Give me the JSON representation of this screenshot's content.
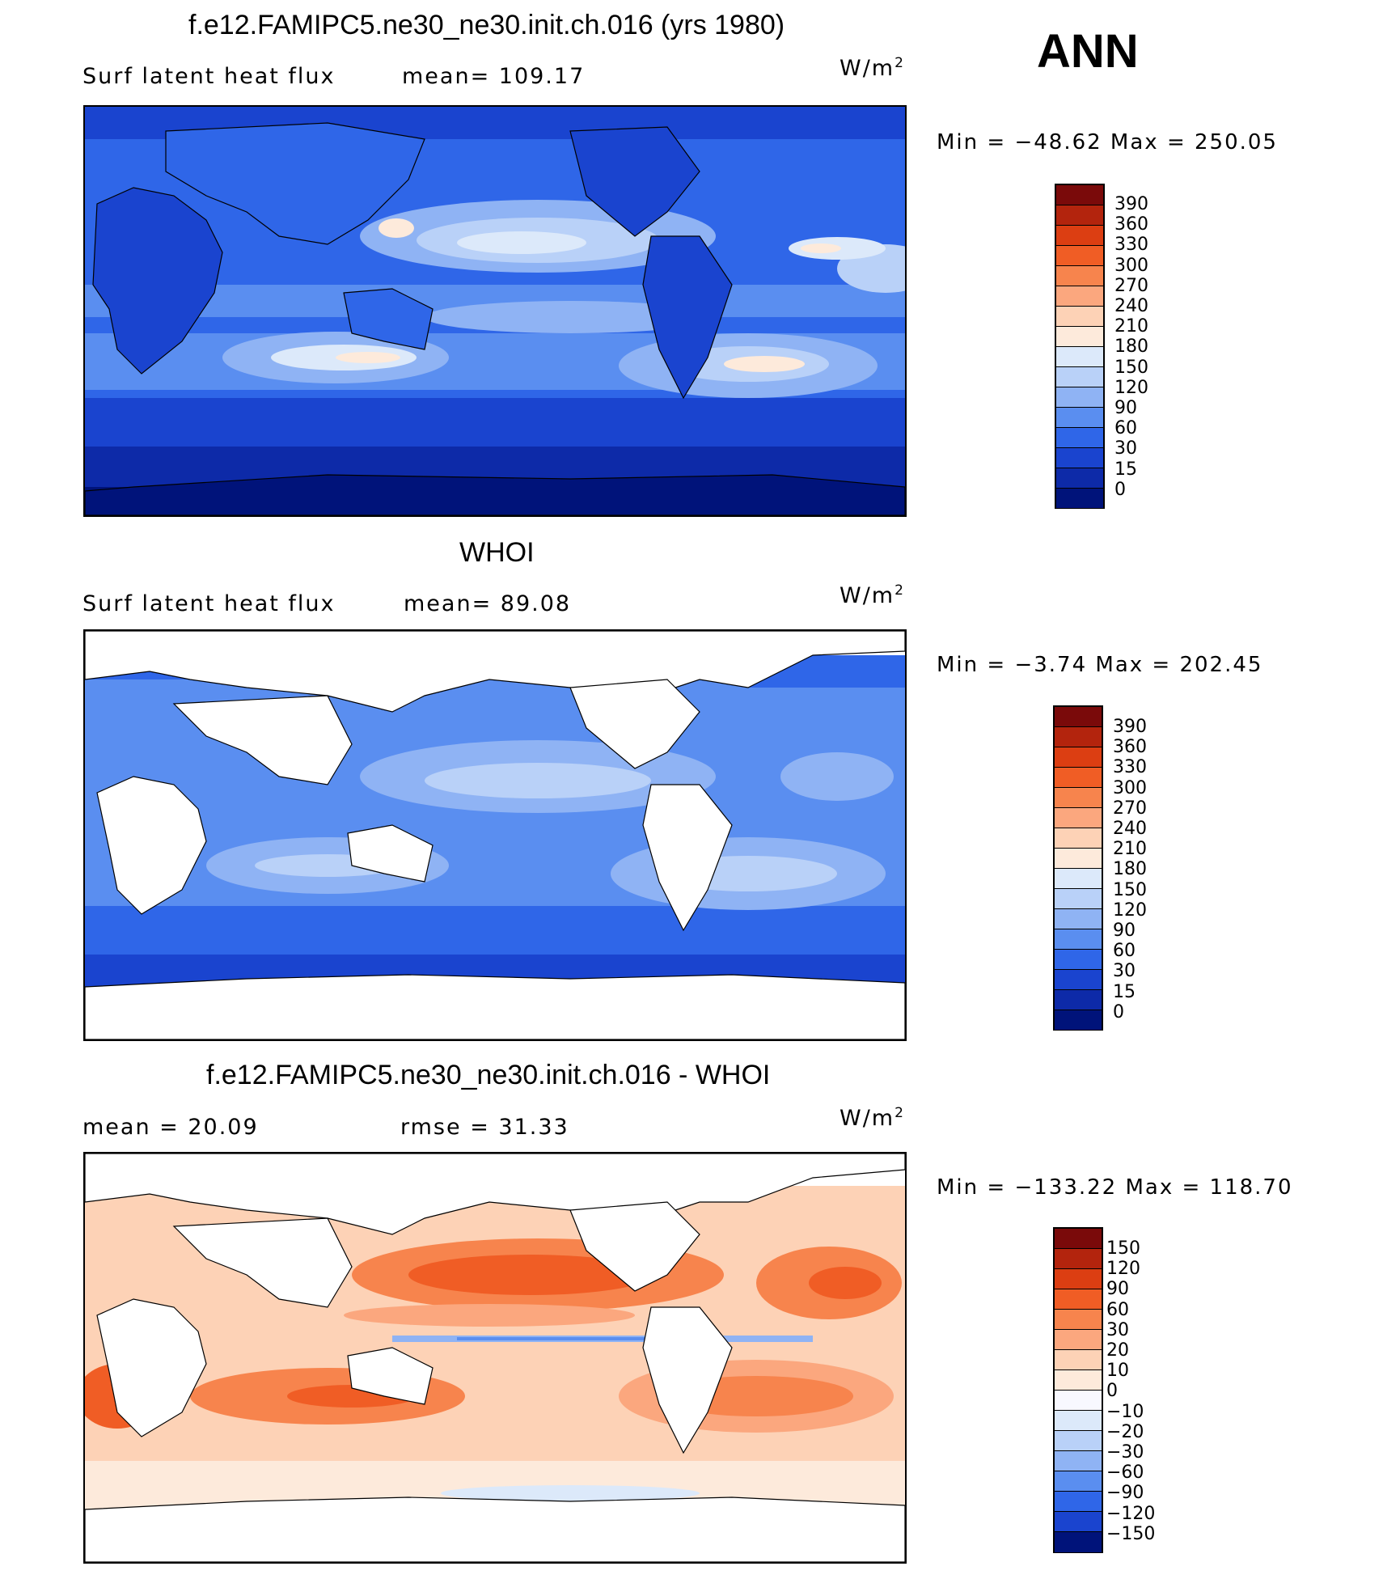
{
  "header": {
    "corner_label": "ANN"
  },
  "panels": [
    {
      "title": "f.e12.FAMIPC5.ne30_ne30.init.ch.016 (yrs 1980)",
      "subtitle_left": "Surf latent heat flux",
      "subtitle_mid": "mean= 109.17",
      "units_base": "W/m",
      "units_exp": "2",
      "min_max": "Min = −48.62 Max = 250.05",
      "colorbar_labels": [
        "390",
        "360",
        "330",
        "300",
        "270",
        "240",
        "210",
        "180",
        "150",
        "120",
        "90",
        "60",
        "30",
        "15",
        "0"
      ]
    },
    {
      "title": "WHOI",
      "subtitle_left": "Surf latent heat flux",
      "subtitle_mid": "mean= 89.08",
      "units_base": "W/m",
      "units_exp": "2",
      "min_max": "Min = −3.74 Max = 202.45",
      "colorbar_labels": [
        "390",
        "360",
        "330",
        "300",
        "270",
        "240",
        "210",
        "180",
        "150",
        "120",
        "90",
        "60",
        "30",
        "15",
        "0"
      ]
    },
    {
      "title": "f.e12.FAMIPC5.ne30_ne30.init.ch.016 - WHOI",
      "subtitle_left": "mean = 20.09",
      "subtitle_mid": "rmse = 31.33",
      "units_base": "W/m",
      "units_exp": "2",
      "min_max": "Min = −133.22 Max = 118.70",
      "colorbar_labels": [
        "150",
        "120",
        "90",
        "60",
        "30",
        "20",
        "10",
        "0",
        "−10",
        "−20",
        "−30",
        "−60",
        "−90",
        "−120",
        "−150"
      ]
    }
  ],
  "colors": {
    "abs_scale": [
      "#7a0a0a",
      "#b3240d",
      "#dc3e12",
      "#f05d25",
      "#f7844d",
      "#fba77e",
      "#fdd2b6",
      "#fdeadb",
      "#dce9fa",
      "#b9d1f8",
      "#8fb3f4",
      "#5a8ef0",
      "#2f66e8",
      "#1a44cf",
      "#0d2aa8",
      "#00137a"
    ],
    "diff_scale": [
      "#7a0a0a",
      "#b3240d",
      "#dc3e12",
      "#f05d25",
      "#f7844d",
      "#fba77e",
      "#fdd2b6",
      "#fdeadb",
      "#f8f8ff",
      "#dce9fa",
      "#b9d1f8",
      "#8fb3f4",
      "#5a8ef0",
      "#2f66e8",
      "#1a44cf",
      "#00137a"
    ],
    "land": "#ffffff",
    "coast": "#000000"
  }
}
